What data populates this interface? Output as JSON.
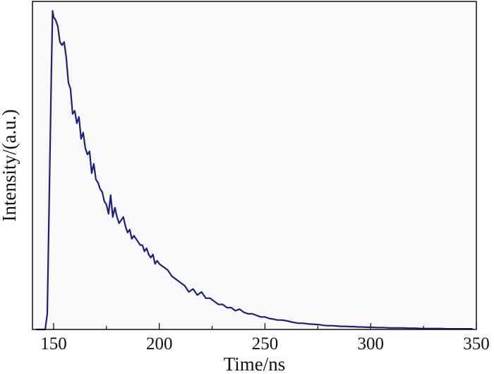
{
  "chart_data": {
    "type": "line",
    "title": "",
    "xlabel": "Time/ns",
    "ylabel": "Intensity/(a.u.)",
    "xlim": [
      140,
      350
    ],
    "ylim": [
      0,
      1.05
    ],
    "xticks": [
      150,
      200,
      250,
      300,
      350
    ],
    "grid": false,
    "legend": "none",
    "colors": {
      "background": "#f9f9fb",
      "axis": "#000000",
      "line": "#1f1f7a",
      "text": "#111111"
    },
    "series": [
      {
        "x": [
          142,
          144,
          146,
          147,
          148,
          149,
          149.5,
          150,
          151,
          152,
          153,
          154,
          155,
          156,
          157,
          158,
          159,
          160,
          161,
          162,
          163,
          164,
          165,
          166,
          167,
          168,
          169,
          170,
          171,
          172,
          173,
          174,
          175,
          176,
          177,
          178,
          179,
          180,
          181,
          182,
          183,
          184,
          185,
          186,
          187,
          188,
          189,
          190,
          191,
          192,
          193,
          194,
          195,
          196,
          197,
          198,
          199,
          200,
          202,
          204,
          206,
          208,
          210,
          212,
          214,
          216,
          218,
          220,
          222,
          224,
          226,
          228,
          230,
          232,
          234,
          236,
          238,
          240,
          242,
          244,
          246,
          248,
          250,
          252,
          254,
          256,
          258,
          260,
          262,
          264,
          266,
          268,
          270,
          272,
          274,
          276,
          278,
          280,
          282,
          284,
          286,
          288,
          290,
          292,
          294,
          296,
          298,
          300,
          303,
          306,
          309,
          312,
          315,
          318,
          321,
          324,
          327,
          330,
          333,
          336,
          339,
          342,
          345,
          348
        ],
        "y": [
          0.0,
          0.0,
          0.0,
          0.05,
          0.45,
          0.85,
          1.02,
          1.0,
          0.99,
          0.97,
          0.92,
          0.91,
          0.92,
          0.87,
          0.79,
          0.77,
          0.69,
          0.7,
          0.66,
          0.68,
          0.61,
          0.63,
          0.58,
          0.56,
          0.57,
          0.5,
          0.53,
          0.48,
          0.47,
          0.45,
          0.44,
          0.41,
          0.4,
          0.37,
          0.43,
          0.36,
          0.39,
          0.36,
          0.34,
          0.35,
          0.36,
          0.33,
          0.31,
          0.32,
          0.29,
          0.3,
          0.29,
          0.28,
          0.27,
          0.27,
          0.25,
          0.26,
          0.24,
          0.23,
          0.24,
          0.21,
          0.22,
          0.21,
          0.2,
          0.19,
          0.17,
          0.16,
          0.15,
          0.14,
          0.12,
          0.13,
          0.11,
          0.12,
          0.1,
          0.1,
          0.09,
          0.08,
          0.08,
          0.07,
          0.07,
          0.06,
          0.065,
          0.055,
          0.05,
          0.05,
          0.045,
          0.04,
          0.04,
          0.035,
          0.033,
          0.03,
          0.03,
          0.028,
          0.025,
          0.022,
          0.02,
          0.02,
          0.018,
          0.017,
          0.016,
          0.015,
          0.013,
          0.012,
          0.012,
          0.011,
          0.01,
          0.01,
          0.009,
          0.009,
          0.008,
          0.008,
          0.007,
          0.007,
          0.006,
          0.006,
          0.005,
          0.005,
          0.005,
          0.004,
          0.004,
          0.003,
          0.003,
          0.003,
          0.003,
          0.002,
          0.002,
          0.002,
          0.002,
          0.002
        ]
      }
    ]
  }
}
